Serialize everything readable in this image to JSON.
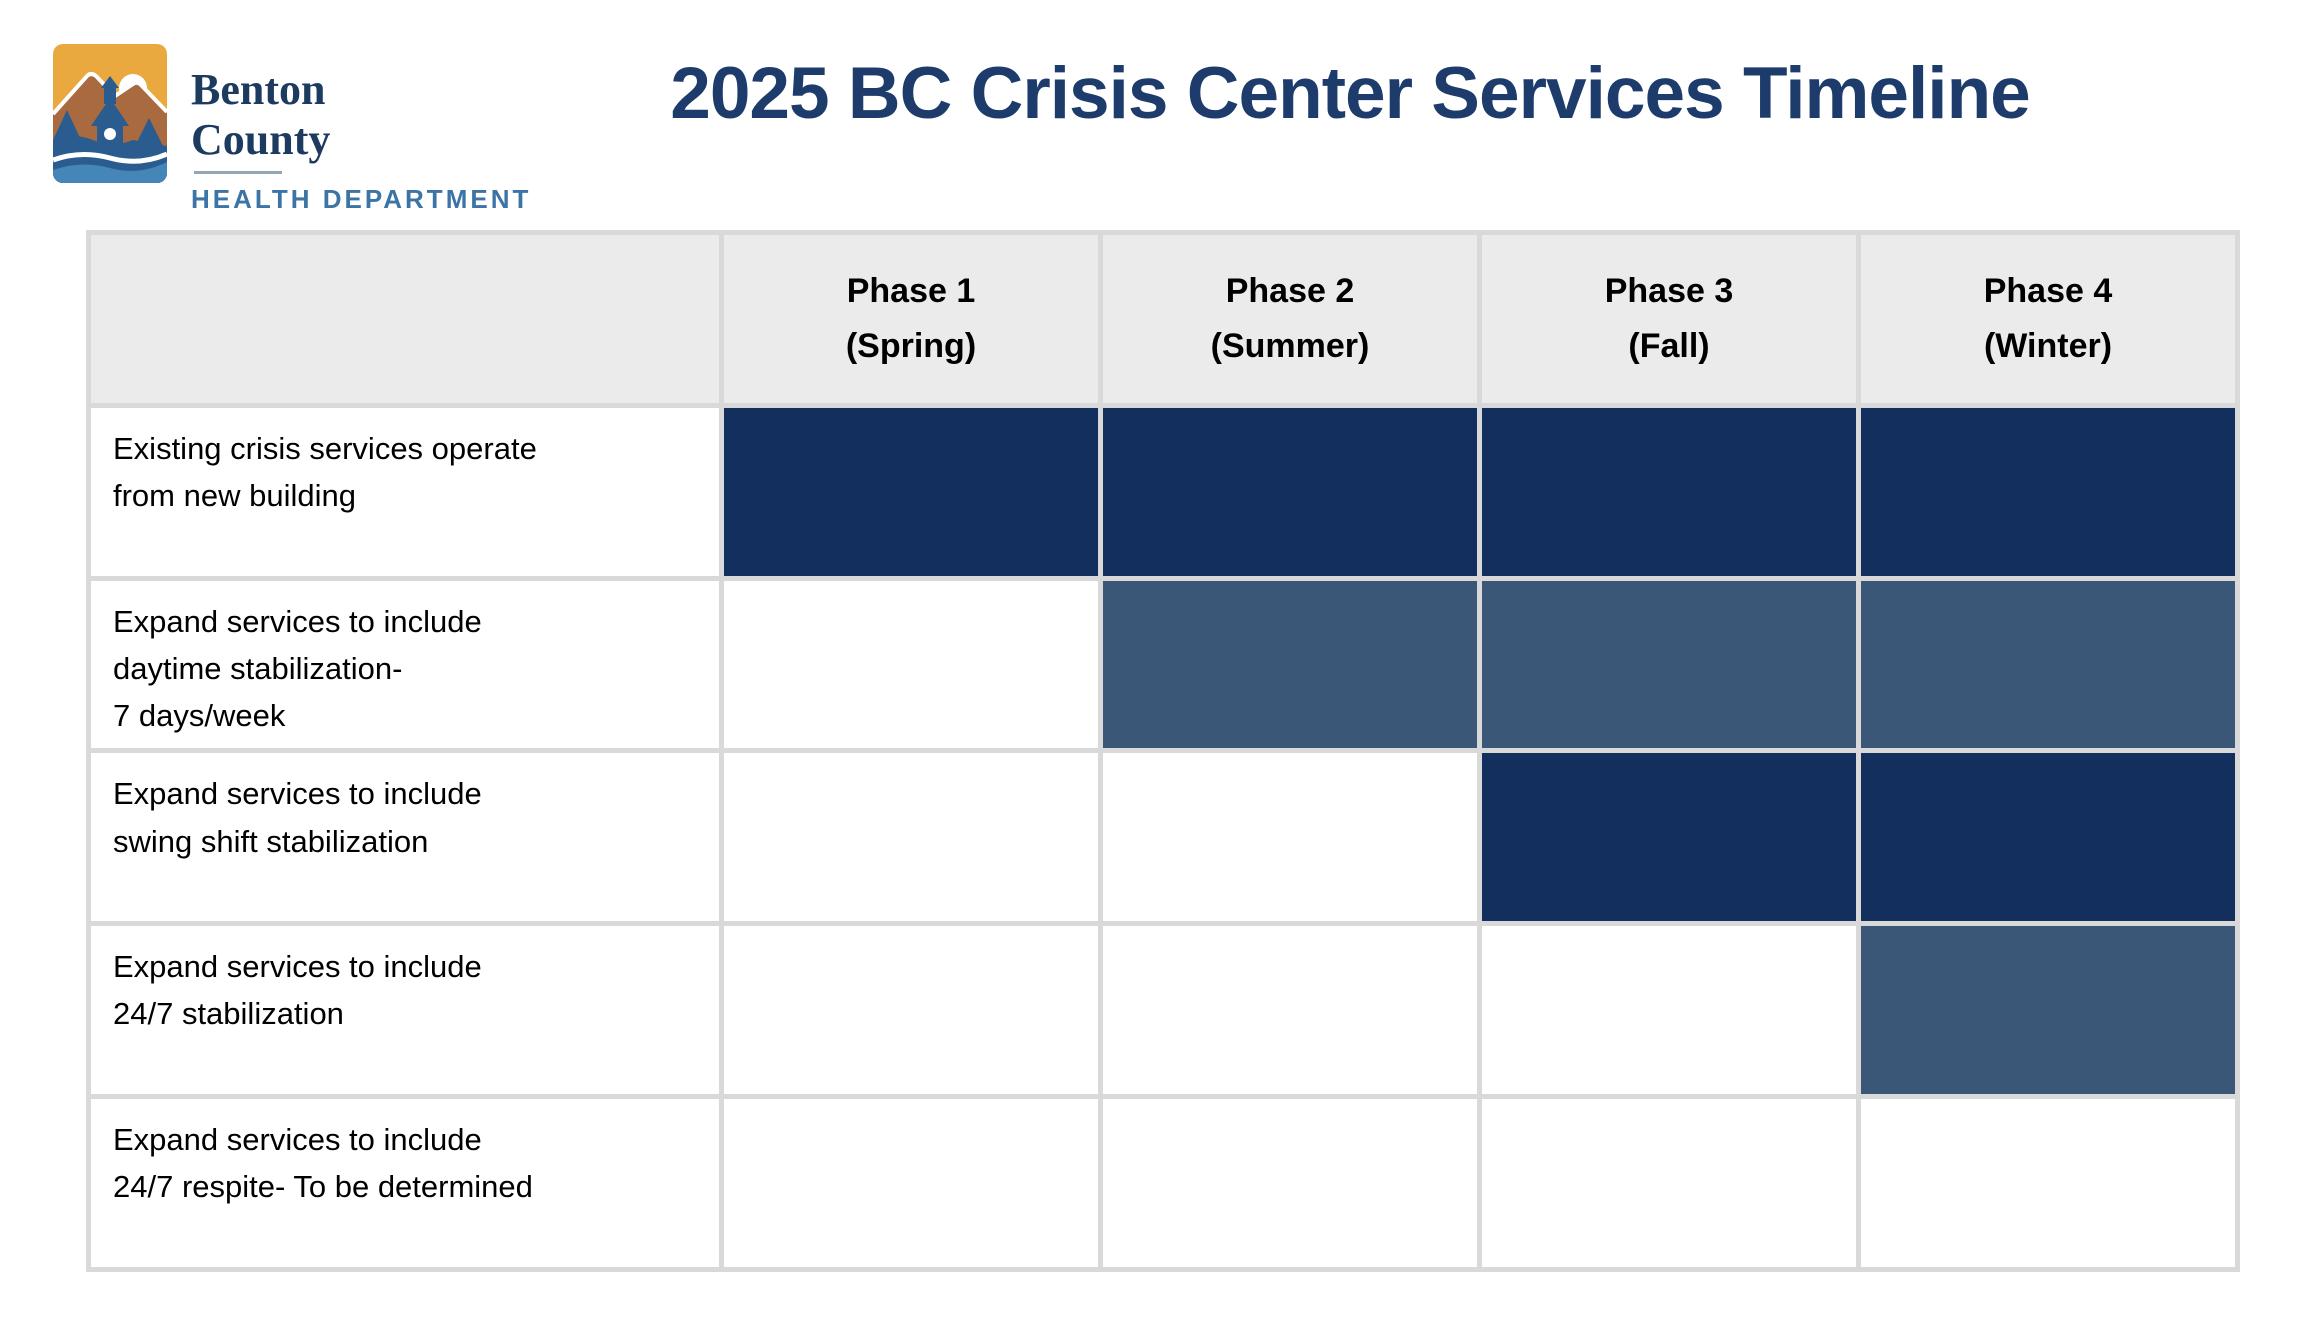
{
  "logo": {
    "org_line1": "Benton",
    "org_line2": "County",
    "org_line3": "HEALTH DEPARTMENT",
    "icon": "benton-county-logo-icon",
    "colors": {
      "gold": "#e9a93f",
      "brown": "#a96a40",
      "tree_navy": "#2b5c8f",
      "wave_blue": "#4486b8",
      "name_navy": "#1d3a5f",
      "dept_blue": "#3c74a6"
    }
  },
  "title": "2025 BC Crisis Center Services Timeline",
  "title_color": "#1e3c6b",
  "chart_data": {
    "type": "table",
    "subtype": "gantt-timeline",
    "title": "2025 BC Crisis Center Services Timeline",
    "columns": [
      {
        "line1": "Phase 1",
        "line2": "(Spring)"
      },
      {
        "line1": "Phase 2",
        "line2": "(Summer)"
      },
      {
        "line1": "Phase 3",
        "line2": "(Fall)"
      },
      {
        "line1": "Phase 4",
        "line2": "(Winter)"
      }
    ],
    "rows": [
      {
        "label": "Existing crisis services operate from new building",
        "lines": [
          "Existing crisis services operate",
          "from new building"
        ],
        "cells": [
          "navy",
          "navy",
          "navy",
          "navy"
        ]
      },
      {
        "label": "Expand services to include daytime stabilization- 7 days/week",
        "lines": [
          "Expand services to include",
          "daytime stabilization-",
          "7 days/week"
        ],
        "cells": [
          "",
          "slate",
          "slate",
          "slate"
        ]
      },
      {
        "label": "Expand services to include swing shift stabilization",
        "lines": [
          "Expand services to include",
          "swing shift stabilization"
        ],
        "cells": [
          "",
          "",
          "navy",
          "navy"
        ]
      },
      {
        "label": "Expand services to include 24/7 stabilization",
        "lines": [
          "Expand services to include",
          "24/7 stabilization"
        ],
        "cells": [
          "",
          "",
          "",
          "slate"
        ]
      },
      {
        "label": "Expand services to include 24/7 respite- To be determined",
        "lines": [
          "Expand services to include",
          "24/7 respite- To be determined"
        ],
        "cells": [
          "",
          "",
          "",
          ""
        ]
      }
    ],
    "fill_colors": {
      "navy": "#132f5e",
      "slate": "#3a5778"
    },
    "grid_color": "#d9d9d9",
    "header_bg": "#ebebeb",
    "legend": null
  }
}
